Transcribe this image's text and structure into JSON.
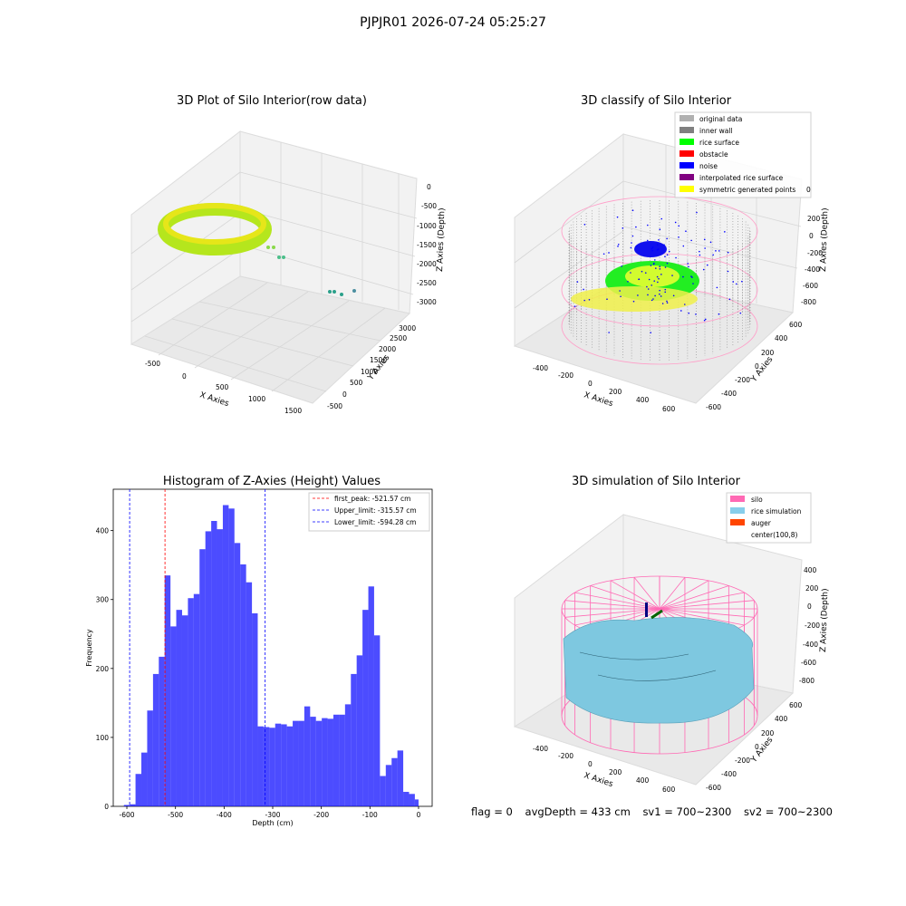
{
  "figure": {
    "suptitle": "PJPJR01 2026-07-24 05:25:27",
    "footer": {
      "flag": "flag = 0",
      "avg_depth": "avgDepth = 433 cm",
      "sv1": "sv1 = 700~2300",
      "sv2": "sv2 = 700~2300"
    }
  },
  "panel_raw": {
    "title": "3D Plot of Silo Interior(row data)",
    "xlabel": "X Axies",
    "ylabel": "Y Axies",
    "zlabel": "Z Axies (Depth)",
    "x_ticks": [
      "-500",
      "0",
      "500",
      "1000",
      "1500"
    ],
    "y_ticks": [
      "-500",
      "0",
      "500",
      "1000",
      "1500",
      "2000",
      "2500",
      "3000"
    ],
    "z_ticks": [
      "0",
      "-500",
      "-1000",
      "-1500",
      "-2000",
      "-2500",
      "-3000"
    ]
  },
  "panel_classify": {
    "title": "3D classify of Silo Interior",
    "xlabel": "X Axies",
    "ylabel": "Y Axies",
    "zlabel": "Z Axies (Depth)",
    "x_ticks": [
      "-400",
      "-200",
      "0",
      "200",
      "400",
      "600"
    ],
    "y_ticks": [
      "-600",
      "-400",
      "-200",
      "0",
      "200",
      "400",
      "600"
    ],
    "z_ticks": [
      "200",
      "0",
      "-200",
      "-400",
      "-600",
      "-800"
    ],
    "z_top_tick": "0",
    "legend": [
      {
        "label": "original data",
        "color": "#b0b0b0"
      },
      {
        "label": "inner wall",
        "color": "#808080"
      },
      {
        "label": "rice surface",
        "color": "#00ff00"
      },
      {
        "label": "obstacle",
        "color": "#ff0000"
      },
      {
        "label": "noise",
        "color": "#0000ff"
      },
      {
        "label": "interpolated rice surface",
        "color": "#800080"
      },
      {
        "label": "symmetric generated points",
        "color": "#ffff00"
      }
    ]
  },
  "panel_sim": {
    "title": "3D simulation of Silo Interior",
    "xlabel": "X Axies",
    "ylabel": "Y Axies",
    "zlabel": "Z Axies (Depth)",
    "x_ticks": [
      "-400",
      "-200",
      "0",
      "200",
      "400",
      "600"
    ],
    "y_ticks": [
      "-600",
      "-400",
      "-200",
      "0",
      "200",
      "400",
      "600"
    ],
    "z_ticks": [
      "400",
      "200",
      "0",
      "-200",
      "-400",
      "-600",
      "-800"
    ],
    "legend": [
      {
        "label": "silo",
        "color": "#ff69b4"
      },
      {
        "label": "rice simulation",
        "color": "#87ceeb"
      },
      {
        "label": "auger",
        "color": "#ff4500"
      },
      {
        "label": "center(100,8)",
        "color": "none"
      }
    ]
  },
  "chart_data": {
    "type": "bar",
    "title": "Histogram of Z-Axies (Height) Values",
    "xlabel": "Depth (cm)",
    "ylabel": "Frequency",
    "bar_color": "#0000ff",
    "xlim": [
      -628,
      28
    ],
    "ylim": [
      0,
      460
    ],
    "x_ticks": [
      -600,
      -500,
      -400,
      -300,
      -200,
      -100,
      0
    ],
    "y_ticks": [
      0,
      100,
      200,
      300,
      400
    ],
    "bin_edges": [
      -606.1,
      -594.1,
      -582.2,
      -570.2,
      -558.2,
      -546.2,
      -534.3,
      -522.3,
      -510.3,
      -498.4,
      -486.4,
      -474.4,
      -462.5,
      -450.5,
      -438.5,
      -426.5,
      -414.6,
      -402.6,
      -390.6,
      -378.7,
      -366.7,
      -354.7,
      -342.7,
      -330.8,
      -318.8,
      -306.8,
      -294.9,
      -282.9,
      -270.9,
      -258.9,
      -247.0,
      -235.0,
      -223.0,
      -211.1,
      -199.1,
      -187.1,
      -175.2,
      -163.2,
      -151.2,
      -139.2,
      -127.3,
      -115.3,
      -103.3,
      -91.4,
      -79.4,
      -67.4,
      -55.4,
      -43.5,
      -31.5,
      -19.5,
      -7.6,
      0.0
    ],
    "values": [
      2,
      3,
      47,
      78,
      139,
      192,
      217,
      335,
      261,
      285,
      277,
      302,
      308,
      373,
      399,
      414,
      402,
      437,
      432,
      382,
      351,
      325,
      280,
      116,
      115,
      114,
      120,
      119,
      116,
      124,
      124,
      145,
      130,
      124,
      128,
      127,
      133,
      133,
      148,
      192,
      219,
      285,
      319,
      248,
      44,
      60,
      70,
      81,
      21,
      18,
      10
    ],
    "vlines": [
      {
        "x": -521.57,
        "color": "#ff0000",
        "label": "first_peak: -521.57 cm"
      },
      {
        "x": -315.57,
        "color": "#0000ff",
        "label": "Upper_limit: -315.57 cm"
      },
      {
        "x": -594.28,
        "color": "#0000ff",
        "label": "Lower_limit: -594.28 cm"
      }
    ],
    "legend_position": "upper right",
    "grid": false
  }
}
